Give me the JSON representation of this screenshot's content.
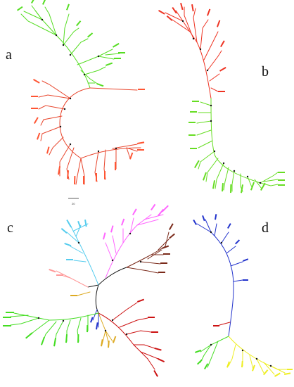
{
  "panels": [
    {
      "letter": "a",
      "main_color": "#e8452c",
      "alt_color": "#55dd22"
    },
    {
      "letter": "b",
      "main_color": "#ee3322",
      "alt_color": "#66dd22"
    },
    {
      "letter": "c",
      "main_color": "#7a1e1e",
      "alt_color": "#44dd22"
    },
    {
      "letter": "d",
      "main_color": "#2233cc",
      "alt_color": "#eeee22"
    }
  ],
  "scale_bar": {
    "label": "20"
  },
  "leaf_colors": {
    "red": "#ee3322",
    "orange": "#ff5533",
    "green": "#44dd22",
    "cyan": "#55ccee",
    "pink": "#ff66ff",
    "salmon": "#ff9999",
    "brown": "#7a2a1a",
    "darkred": "#cc1111",
    "blue": "#2233cc",
    "gold": "#ddaa22",
    "yellow": "#eeee22"
  }
}
